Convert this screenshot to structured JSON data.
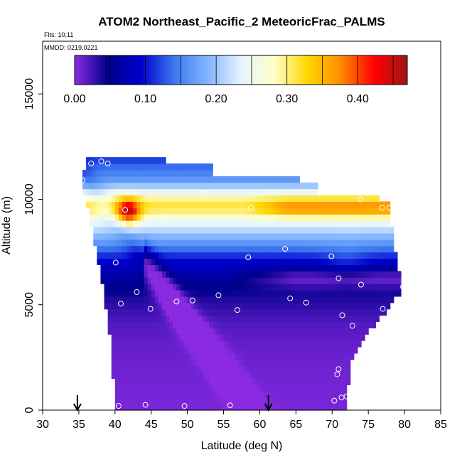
{
  "chart_data": {
    "type": "heatmap",
    "title": "ATOM2 Northeast_Pacific_2 MeteoricFrac_PALMS",
    "subtitle_lines": [
      "Flts: 10,11",
      "MMDD: 0219,0221"
    ],
    "xlabel": "Latitude (deg N)",
    "ylabel": "Altitude (m)",
    "xlim": [
      30,
      85
    ],
    "ylim": [
      0,
      17500
    ],
    "x_ticks": [
      "30",
      "35",
      "40",
      "45",
      "50",
      "55",
      "60",
      "65",
      "70",
      "75",
      "80",
      "85"
    ],
    "y_ticks": [
      "0",
      "5000",
      "10000",
      "15000"
    ],
    "colorbar": {
      "range": [
        0,
        0.47
      ],
      "ticks": [
        "0.00",
        "0.10",
        "0.20",
        "0.30",
        "0.40"
      ],
      "colors": [
        "#8a2be2",
        "#00008b",
        "#0000cd",
        "#3c78f0",
        "#82b4ff",
        "#e6f4ff",
        "#ffffc8",
        "#ffd700",
        "#ff8c00",
        "#ff0000",
        "#a01414"
      ]
    },
    "arrows_x": [
      34.8,
      61.2
    ],
    "profile_points": [
      [
        40.5,
        200
      ],
      [
        44.2,
        250
      ],
      [
        49.6,
        200
      ],
      [
        55.9,
        230
      ],
      [
        70.3,
        450
      ],
      [
        71.3,
        600
      ],
      [
        72.0,
        650
      ],
      [
        70.7,
        1700
      ],
      [
        70.9,
        1950
      ],
      [
        72.8,
        4000
      ],
      [
        71.4,
        4500
      ],
      [
        77.0,
        4800
      ],
      [
        44.9,
        4800
      ],
      [
        66.4,
        5100
      ],
      [
        64.2,
        5300
      ],
      [
        48.5,
        5150
      ],
      [
        50.7,
        5200
      ],
      [
        56.9,
        4750
      ],
      [
        40.8,
        5050
      ],
      [
        54.3,
        5450
      ],
      [
        43.0,
        5600
      ],
      [
        74.0,
        5950
      ],
      [
        79.8,
        5850
      ],
      [
        70.9,
        6250
      ],
      [
        69.9,
        7300
      ],
      [
        58.4,
        7250
      ],
      [
        63.5,
        7650
      ],
      [
        40.1,
        7000
      ],
      [
        46.5,
        9150
      ],
      [
        41.4,
        9500
      ],
      [
        58.8,
        9600
      ],
      [
        76.9,
        9600
      ],
      [
        77.9,
        9600
      ],
      [
        73.9,
        10000
      ],
      [
        52.2,
        10300
      ],
      [
        35.5,
        10900
      ],
      [
        36.7,
        11700
      ],
      [
        38.1,
        11800
      ],
      [
        39.0,
        11700
      ]
    ]
  }
}
